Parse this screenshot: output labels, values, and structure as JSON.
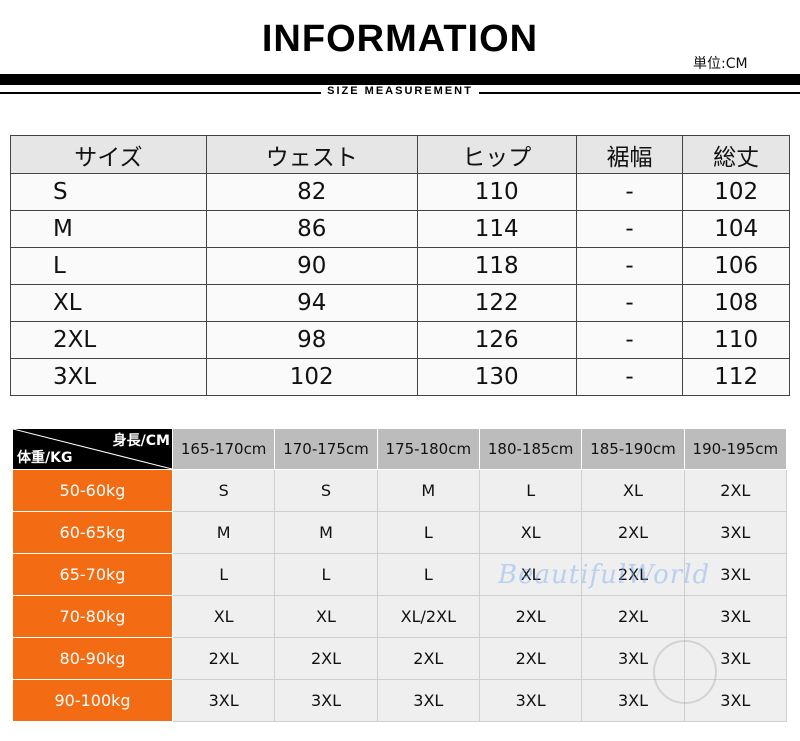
{
  "header": {
    "title": "INFORMATION",
    "unit": "単位:CM",
    "subtitle": "SIZE MEASUREMENT"
  },
  "size_table": {
    "columns": [
      "サイズ",
      "ウェスト",
      "ヒップ",
      "裾幅",
      "総丈"
    ],
    "rows": [
      [
        "S",
        "82",
        "110",
        "-",
        "102"
      ],
      [
        "M",
        "86",
        "114",
        "-",
        "104"
      ],
      [
        "L",
        "90",
        "118",
        "-",
        "106"
      ],
      [
        "XL",
        "94",
        "122",
        "-",
        "108"
      ],
      [
        "2XL",
        "98",
        "126",
        "-",
        "110"
      ],
      [
        "3XL",
        "102",
        "130",
        "-",
        "112"
      ]
    ]
  },
  "fit_table": {
    "corner_height_label": "身長/CM",
    "corner_weight_label": "体重/KG",
    "heights": [
      "165-170cm",
      "170-175cm",
      "175-180cm",
      "180-185cm",
      "185-190cm",
      "190-195cm"
    ],
    "rows": [
      {
        "weight": "50-60kg",
        "sizes": [
          "S",
          "S",
          "M",
          "L",
          "XL",
          "2XL"
        ]
      },
      {
        "weight": "60-65kg",
        "sizes": [
          "M",
          "M",
          "L",
          "XL",
          "2XL",
          "3XL"
        ]
      },
      {
        "weight": "65-70kg",
        "sizes": [
          "L",
          "L",
          "L",
          "XL",
          "2XL",
          "3XL"
        ]
      },
      {
        "weight": "70-80kg",
        "sizes": [
          "XL",
          "XL",
          "XL/2XL",
          "2XL",
          "2XL",
          "3XL"
        ]
      },
      {
        "weight": "80-90kg",
        "sizes": [
          "2XL",
          "2XL",
          "2XL",
          "2XL",
          "3XL",
          "3XL"
        ]
      },
      {
        "weight": "90-100kg",
        "sizes": [
          "3XL",
          "3XL",
          "3XL",
          "3XL",
          "3XL",
          "3XL"
        ]
      }
    ]
  },
  "watermark": "BeautifulWorld",
  "colors": {
    "accent_orange": "#f36b12",
    "header_gray": "#bcbcbc"
  }
}
